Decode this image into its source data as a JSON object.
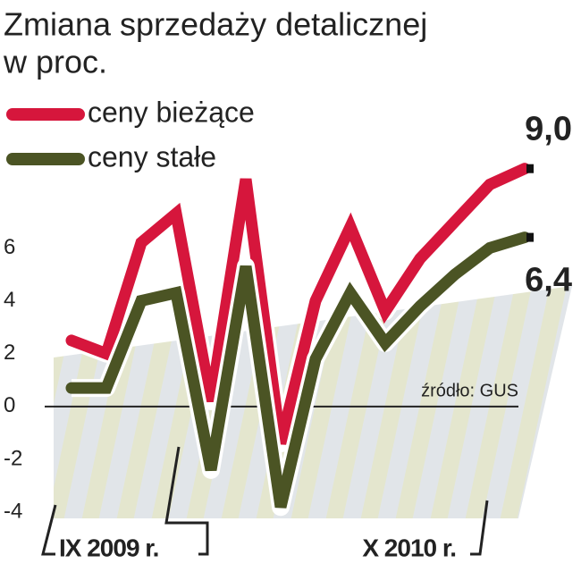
{
  "chart_data": {
    "type": "line",
    "title": "Zmiana sprzedaży detalicznej",
    "subtitle": "w proc.",
    "source": "źródło: GUS",
    "categories": [
      "IX 2009 r.",
      null,
      null,
      null,
      null,
      null,
      null,
      null,
      null,
      null,
      null,
      null,
      null,
      "X 2010 r."
    ],
    "series": [
      {
        "name": "ceny bieżące",
        "color": "#d6163c",
        "values": [
          2.5,
          2.0,
          6.2,
          7.3,
          0.2,
          8.6,
          -1.4,
          4.0,
          6.8,
          3.6,
          5.6,
          7.0,
          8.4,
          9.0
        ],
        "value_labels": [
          null,
          null,
          null,
          null,
          null,
          null,
          null,
          null,
          null,
          null,
          null,
          null,
          null,
          "9,0"
        ]
      },
      {
        "name": "ceny stałe",
        "color": "#4b5424",
        "values": [
          0.7,
          0.7,
          4.0,
          4.3,
          -2.4,
          5.3,
          -3.8,
          1.8,
          4.3,
          2.4,
          3.8,
          5.0,
          6.0,
          6.4
        ],
        "value_labels": [
          null,
          null,
          null,
          null,
          null,
          null,
          null,
          null,
          null,
          null,
          null,
          null,
          null,
          "6,4"
        ]
      }
    ],
    "ylim": [
      -4.3,
      9.7
    ],
    "yticks": [
      -4,
      -2,
      0,
      2,
      4,
      6
    ],
    "grid": false
  }
}
